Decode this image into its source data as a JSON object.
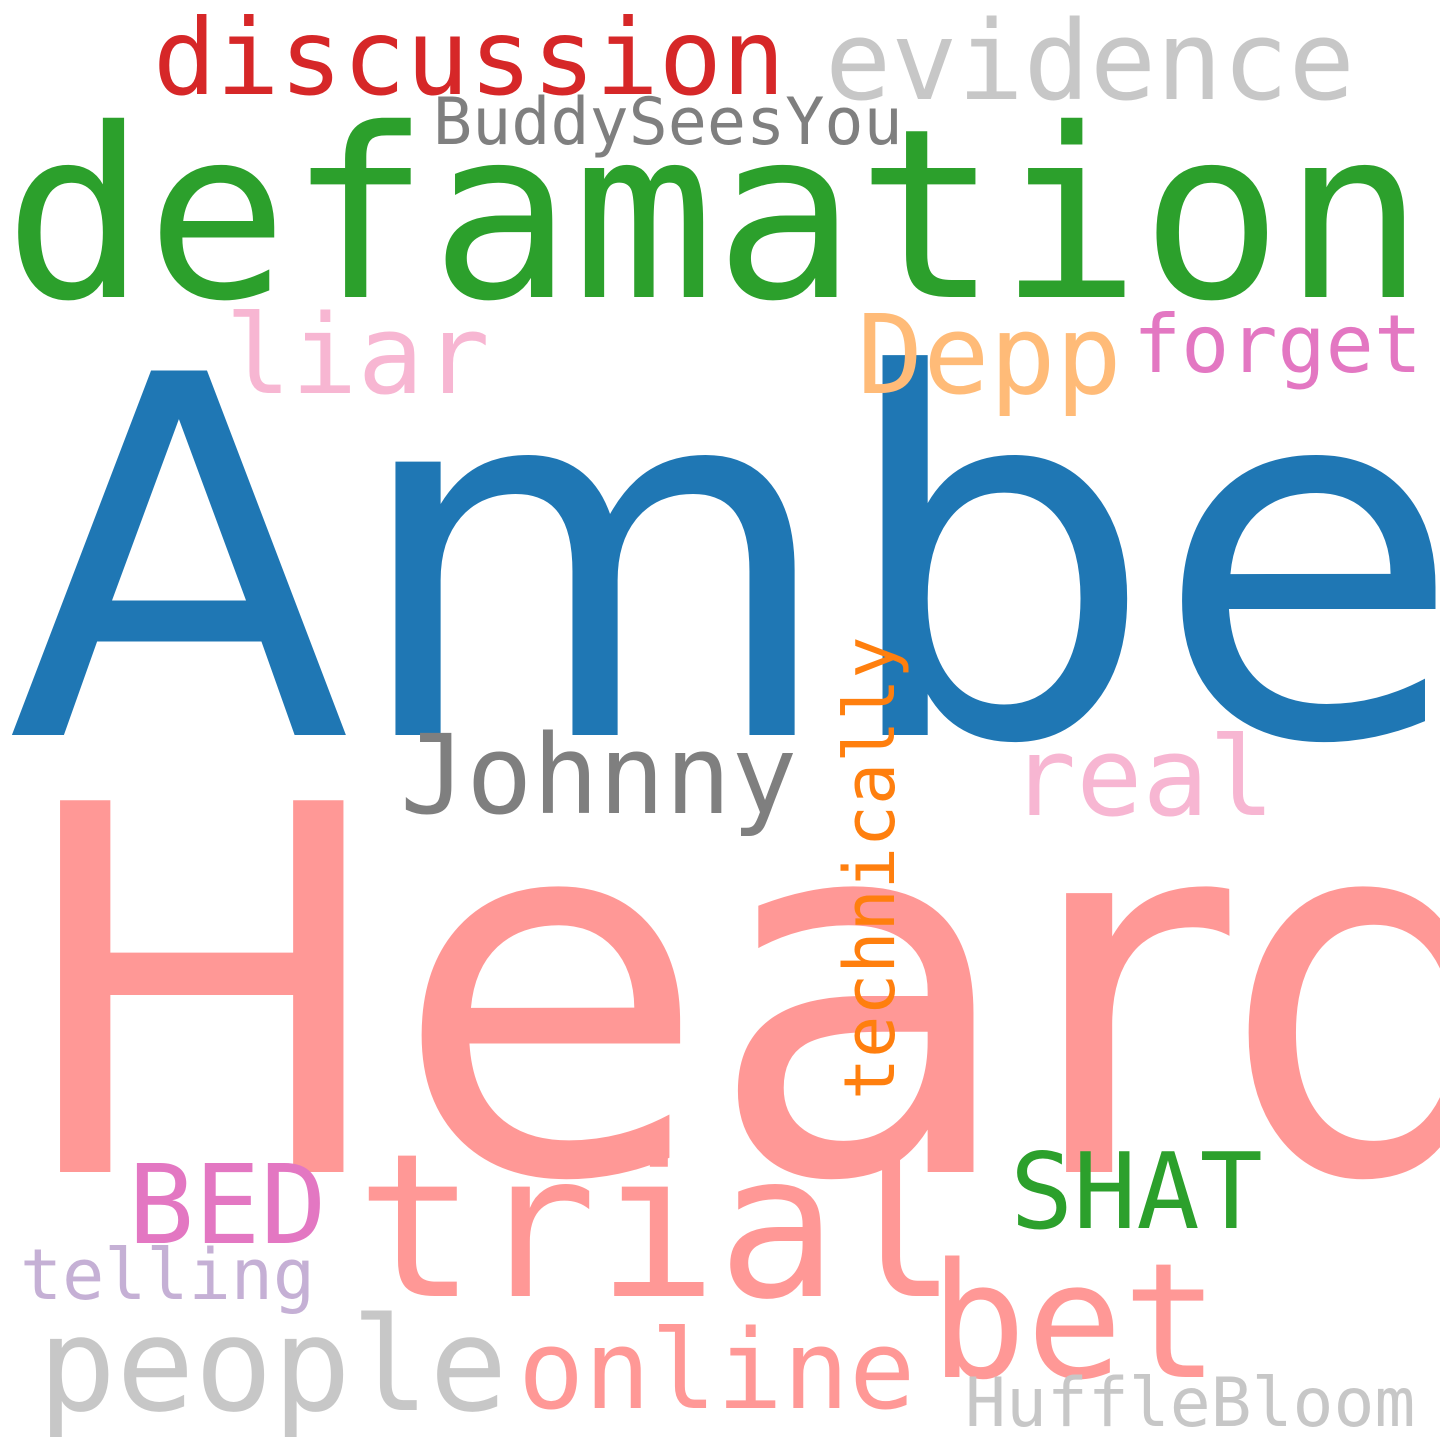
{
  "words": [
    {
      "text": "Heard",
      "color": "#ff9896"
    },
    {
      "text": "Amber",
      "color": "#1f77b4"
    },
    {
      "text": "defamation",
      "color": "#2ca02c"
    },
    {
      "text": "discussion",
      "color": "#d62728"
    },
    {
      "text": "evidence",
      "color": "#c7c7c7"
    },
    {
      "text": "BuddySeesYou",
      "color": "#7f7f7f"
    },
    {
      "text": "liar",
      "color": "#f7b6d2"
    },
    {
      "text": "Depp",
      "color": "#ffbb78"
    },
    {
      "text": "forget",
      "color": "#e377c2"
    },
    {
      "text": "Johnny",
      "color": "#7f7f7f"
    },
    {
      "text": "real",
      "color": "#f7b6d2"
    },
    {
      "text": "technically",
      "color": "#ff7f0e"
    },
    {
      "text": "trial",
      "color": "#ff9896"
    },
    {
      "text": "SHAT",
      "color": "#2ca02c"
    },
    {
      "text": "BED",
      "color": "#e377c2"
    },
    {
      "text": "telling",
      "color": "#c5b0d5"
    },
    {
      "text": "bet",
      "color": "#ff9896"
    },
    {
      "text": "people",
      "color": "#c7c7c7"
    },
    {
      "text": "online",
      "color": "#ff9896"
    },
    {
      "text": "HuffleBloom",
      "color": "#c7c7c7"
    }
  ]
}
